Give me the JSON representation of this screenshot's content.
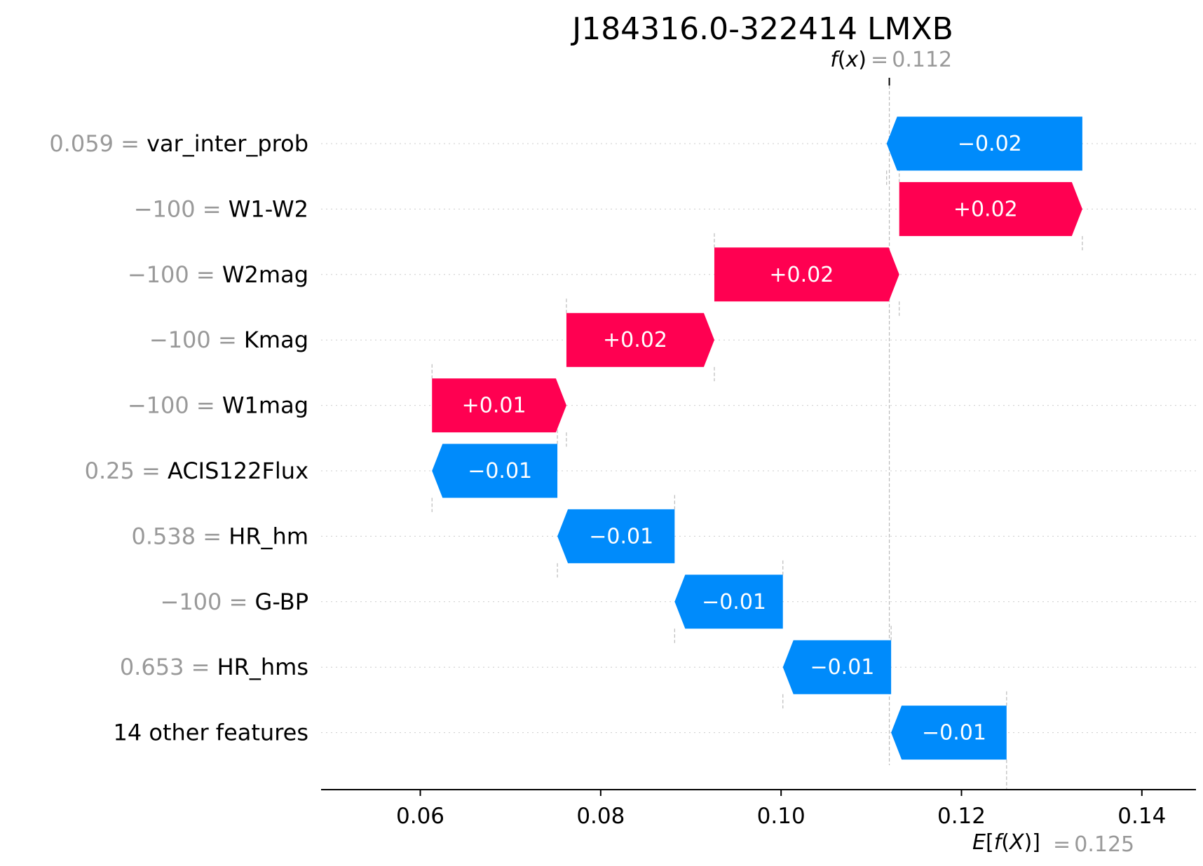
{
  "chart_data": {
    "type": "waterfall",
    "title": "J184316.0-322414 LMXB",
    "fx": {
      "prefix": "f",
      "paren_open": "(",
      "arg": "x",
      "paren_close": ")",
      "equals": "=",
      "value_text": "0.112",
      "value": 0.112
    },
    "base": {
      "E": "E",
      "open_bracket": "[",
      "f": "f",
      "paren_open": "(",
      "arg": "X",
      "paren_close": ")",
      "close_bracket": "]",
      "equals": "=",
      "value_text": "0.125",
      "value": 0.125
    },
    "features": [
      {
        "value_label": "0.059 =",
        "name": "var_inter_prob",
        "start": 0.1334,
        "end": 0.1117,
        "label": "−0.02"
      },
      {
        "value_label": "−100 =",
        "name": "W1-W2",
        "start": 0.1131,
        "end": 0.1334,
        "label": "+0.02"
      },
      {
        "value_label": "−100 =",
        "name": "W2mag",
        "start": 0.0926,
        "end": 0.1131,
        "label": "+0.02"
      },
      {
        "value_label": "−100 =",
        "name": "Kmag",
        "start": 0.0762,
        "end": 0.0926,
        "label": "+0.02"
      },
      {
        "value_label": "−100 =",
        "name": "W1mag",
        "start": 0.0613,
        "end": 0.0762,
        "label": "+0.01"
      },
      {
        "value_label": "0.25 =",
        "name": "ACIS122Flux",
        "start": 0.0752,
        "end": 0.0613,
        "label": "−0.01"
      },
      {
        "value_label": "0.538 =",
        "name": "HR_hm",
        "start": 0.0882,
        "end": 0.0752,
        "label": "−0.01"
      },
      {
        "value_label": "−100 =",
        "name": "G-BP",
        "start": 0.1002,
        "end": 0.0882,
        "label": "−0.01"
      },
      {
        "value_label": "0.653 =",
        "name": "HR_hms",
        "start": 0.1122,
        "end": 0.1002,
        "label": "−0.01"
      },
      {
        "value_label": "",
        "name": "14 other features",
        "start": 0.125,
        "end": 0.1122,
        "label": "−0.01"
      }
    ],
    "xlim": [
      0.049,
      0.146
    ],
    "xticks": [
      0.06,
      0.08,
      0.1,
      0.12,
      0.14
    ],
    "xtick_labels": [
      "0.06",
      "0.08",
      "0.10",
      "0.12",
      "0.14"
    ],
    "colors": {
      "positive": "#ff0051",
      "negative": "#008bfb"
    }
  }
}
